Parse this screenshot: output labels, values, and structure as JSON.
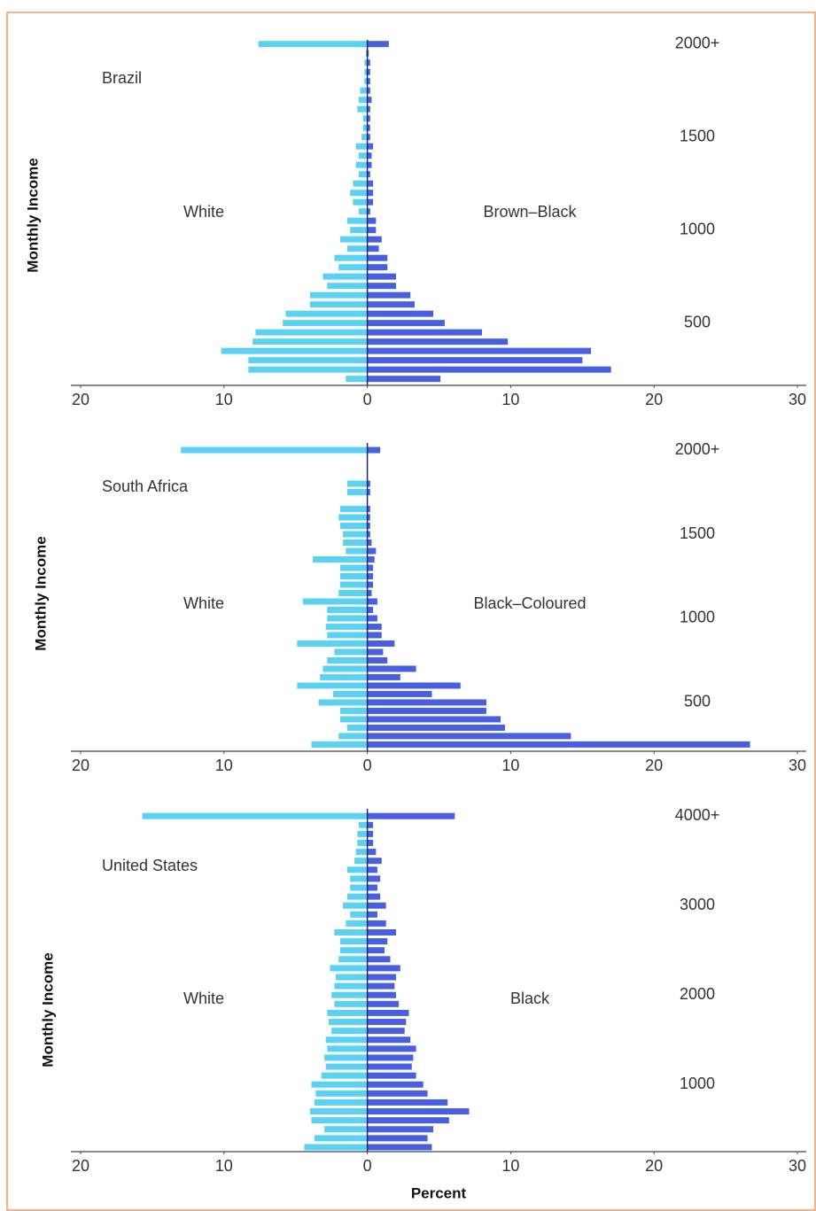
{
  "chart_data": [
    {
      "type": "bar",
      "orientation": "horizontal",
      "title": "Brazil",
      "ylabel": "Monthly Income",
      "y": [
        200,
        250,
        300,
        350,
        400,
        450,
        500,
        550,
        600,
        650,
        700,
        750,
        800,
        850,
        900,
        950,
        1000,
        1050,
        1100,
        1150,
        1200,
        1250,
        1300,
        1350,
        1400,
        1450,
        1500,
        1550,
        1600,
        1650,
        1700,
        1750,
        1800,
        1850,
        1900,
        1950,
        2000
      ],
      "series": [
        {
          "name": "White",
          "color": "#5cd2f2",
          "values": [
            -1.5,
            -8.3,
            -8.3,
            -10.2,
            -8,
            -7.8,
            -5.9,
            -5.7,
            -4,
            -4,
            -2.8,
            -3.1,
            -2,
            -2.3,
            -1.4,
            -1.9,
            -1.2,
            -1.4,
            -0.6,
            -1,
            -1.2,
            -1,
            -0.6,
            -0.8,
            -0.6,
            -0.8,
            -0.4,
            -0.3,
            -0.3,
            -0.7,
            -0.6,
            -0.5,
            -0.2,
            -0.2,
            -0.2,
            -0.1,
            -7.6
          ]
        },
        {
          "name": "Brown–Black",
          "color": "#4a5ee0",
          "values": [
            5.1,
            17,
            15,
            15.6,
            9.8,
            8,
            5.4,
            4.6,
            3.3,
            3,
            2,
            2,
            1.4,
            1.4,
            0.8,
            1,
            0.6,
            0.6,
            0.2,
            0.4,
            0.4,
            0.4,
            0.2,
            0.3,
            0.3,
            0.4,
            0.2,
            0.2,
            0.2,
            0.2,
            0.3,
            0.2,
            0.2,
            0.2,
            0.2,
            0.1,
            1.5
          ]
        }
      ],
      "xlim": [
        -20,
        30
      ],
      "xticks": [
        {
          "value": -20,
          "label": "20"
        },
        {
          "value": -10,
          "label": "10"
        },
        0,
        10,
        20,
        30
      ],
      "ylim": [
        165,
        2070
      ],
      "yticks": [
        500,
        1000,
        1500,
        {
          "value": 2000,
          "label": "2000+"
        }
      ]
    },
    {
      "type": "bar",
      "orientation": "horizontal",
      "title": "South Africa",
      "ylabel": "Monthly Income",
      "y": [
        250,
        300,
        350,
        400,
        450,
        500,
        550,
        600,
        650,
        700,
        750,
        800,
        850,
        900,
        950,
        1000,
        1050,
        1100,
        1150,
        1200,
        1250,
        1300,
        1350,
        1400,
        1450,
        1500,
        1550,
        1600,
        1650,
        1700,
        1750,
        1800,
        1850,
        1900,
        1950,
        2000
      ],
      "series": [
        {
          "name": "White",
          "color": "#5cd2f2",
          "values": [
            -3.9,
            -2,
            -1.4,
            -1.9,
            -1.9,
            -3.4,
            -2.4,
            -4.9,
            -3.3,
            -3.1,
            -2.8,
            -2.3,
            -4.9,
            -2.8,
            -2.9,
            -2.8,
            -2.8,
            -4.5,
            -2,
            -1.9,
            -1.9,
            -1.9,
            -3.8,
            -1.5,
            -1.7,
            -1.7,
            -1.9,
            -2,
            -1.9,
            0,
            -1.4,
            -1.4,
            0,
            0,
            0,
            -13
          ]
        },
        {
          "name": "Black–Coloured",
          "color": "#4a5ee0",
          "values": [
            26.7,
            14.2,
            9.6,
            9.3,
            8.3,
            8.3,
            4.5,
            6.5,
            2.3,
            3.4,
            1.4,
            1.1,
            1.9,
            1,
            1,
            0.7,
            0.4,
            0.7,
            0.3,
            0.4,
            0.4,
            0.4,
            0.5,
            0.6,
            0.3,
            0.2,
            0.2,
            0.2,
            0.2,
            0,
            0.2,
            0.2,
            0,
            0,
            0,
            0.9
          ]
        }
      ],
      "xlim": [
        -20,
        30
      ],
      "xticks": [
        {
          "value": -20,
          "label": "20"
        },
        {
          "value": -10,
          "label": "10"
        },
        0,
        10,
        20,
        30
      ],
      "ylim": [
        210,
        2095
      ],
      "yticks": [
        500,
        1000,
        1500,
        {
          "value": 2000,
          "label": "2000+"
        }
      ]
    },
    {
      "type": "bar",
      "orientation": "horizontal",
      "title": "United States",
      "ylabel": "Monthly Income",
      "xlabel": "Percent",
      "y": [
        300,
        400,
        500,
        600,
        700,
        800,
        900,
        1000,
        1100,
        1200,
        1300,
        1400,
        1500,
        1600,
        1700,
        1800,
        1900,
        2000,
        2100,
        2200,
        2300,
        2400,
        2500,
        2600,
        2700,
        2800,
        2900,
        3000,
        3100,
        3200,
        3300,
        3400,
        3500,
        3600,
        3700,
        3800,
        3900,
        4000
      ],
      "series": [
        {
          "name": "White",
          "color": "#5cd2f2",
          "values": [
            -4.4,
            -3.7,
            -3,
            -3.9,
            -4,
            -3.7,
            -3.6,
            -3.9,
            -3.2,
            -2.9,
            -3,
            -2.8,
            -2.9,
            -2.5,
            -2.7,
            -2.8,
            -2.3,
            -2.5,
            -2.3,
            -2.2,
            -2.6,
            -2,
            -1.9,
            -1.9,
            -2.3,
            -1.5,
            -1.2,
            -1.7,
            -1.4,
            -1.2,
            -1.2,
            -1.4,
            -0.9,
            -0.8,
            -0.7,
            -0.7,
            -0.6,
            -15.7
          ]
        },
        {
          "name": "Black",
          "color": "#4a5ee0",
          "values": [
            4.5,
            4.2,
            4.6,
            5.7,
            7.1,
            5.6,
            4.2,
            3.9,
            3.4,
            3.1,
            3.2,
            3.4,
            3,
            2.6,
            2.7,
            2.9,
            2.2,
            2,
            1.9,
            2,
            2.3,
            1.6,
            1.2,
            1.4,
            2,
            1.3,
            0.7,
            1.3,
            0.9,
            0.7,
            0.9,
            0.7,
            1,
            0.6,
            0.4,
            0.4,
            0.4,
            6.1
          ]
        }
      ],
      "xlim": [
        -20,
        30
      ],
      "xticks": [
        {
          "value": -20,
          "label": "20"
        },
        {
          "value": -10,
          "label": "10"
        },
        0,
        10,
        20,
        30
      ],
      "ylim": [
        250,
        4180
      ],
      "yticks": [
        1000,
        2000,
        3000,
        {
          "value": 4000,
          "label": "4000+"
        }
      ]
    }
  ]
}
